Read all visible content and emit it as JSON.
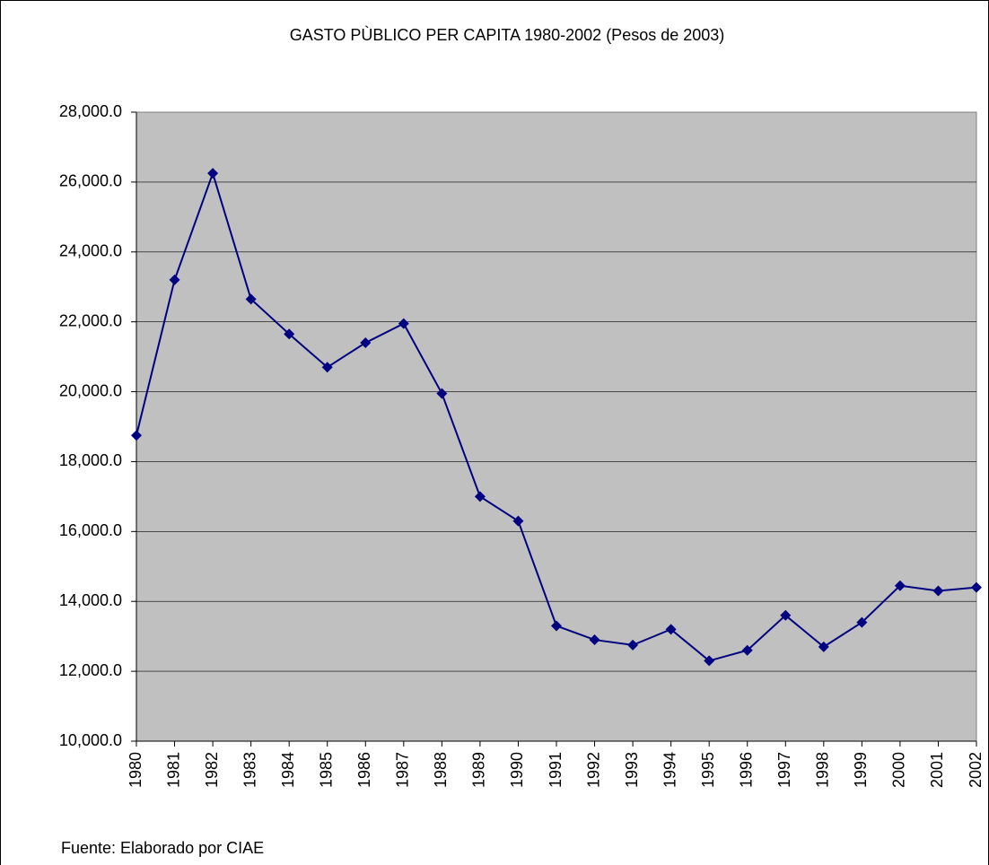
{
  "chart_data": {
    "type": "line",
    "title": "GASTO PÙBLICO PER CAPITA  1980-2002 (Pesos de 2003)",
    "note": "Fuente: Elaborado por CIAE",
    "categories": [
      "1980",
      "1981",
      "1982",
      "1983",
      "1984",
      "1985",
      "1986",
      "1987",
      "1988",
      "1989",
      "1990",
      "1991",
      "1992",
      "1993",
      "1994",
      "1995",
      "1996",
      "1997",
      "1998",
      "1999",
      "2000",
      "2001",
      "2002"
    ],
    "series": [
      {
        "name": "Gasto público per capita",
        "color": "#000080",
        "values": [
          18750,
          23200,
          26250,
          22650,
          21650,
          20700,
          21400,
          21950,
          19950,
          17000,
          16300,
          13300,
          12900,
          12750,
          13200,
          12300,
          12600,
          13600,
          12700,
          13400,
          14450,
          14300,
          14400
        ]
      }
    ],
    "ylim": [
      10000,
      28000
    ],
    "yticks": [
      {
        "value": 10000,
        "label": "10,000.0"
      },
      {
        "value": 12000,
        "label": "12,000.0"
      },
      {
        "value": 14000,
        "label": "14,000.0"
      },
      {
        "value": 16000,
        "label": "16,000.0"
      },
      {
        "value": 18000,
        "label": "18,000.0"
      },
      {
        "value": 20000,
        "label": "20,000.0"
      },
      {
        "value": 22000,
        "label": "22,000.0"
      },
      {
        "value": 24000,
        "label": "24,000.0"
      },
      {
        "value": 26000,
        "label": "26,000.0"
      },
      {
        "value": 28000,
        "label": "28,000.0"
      }
    ],
    "grid": true,
    "plot_background": "#c0c0c0"
  }
}
